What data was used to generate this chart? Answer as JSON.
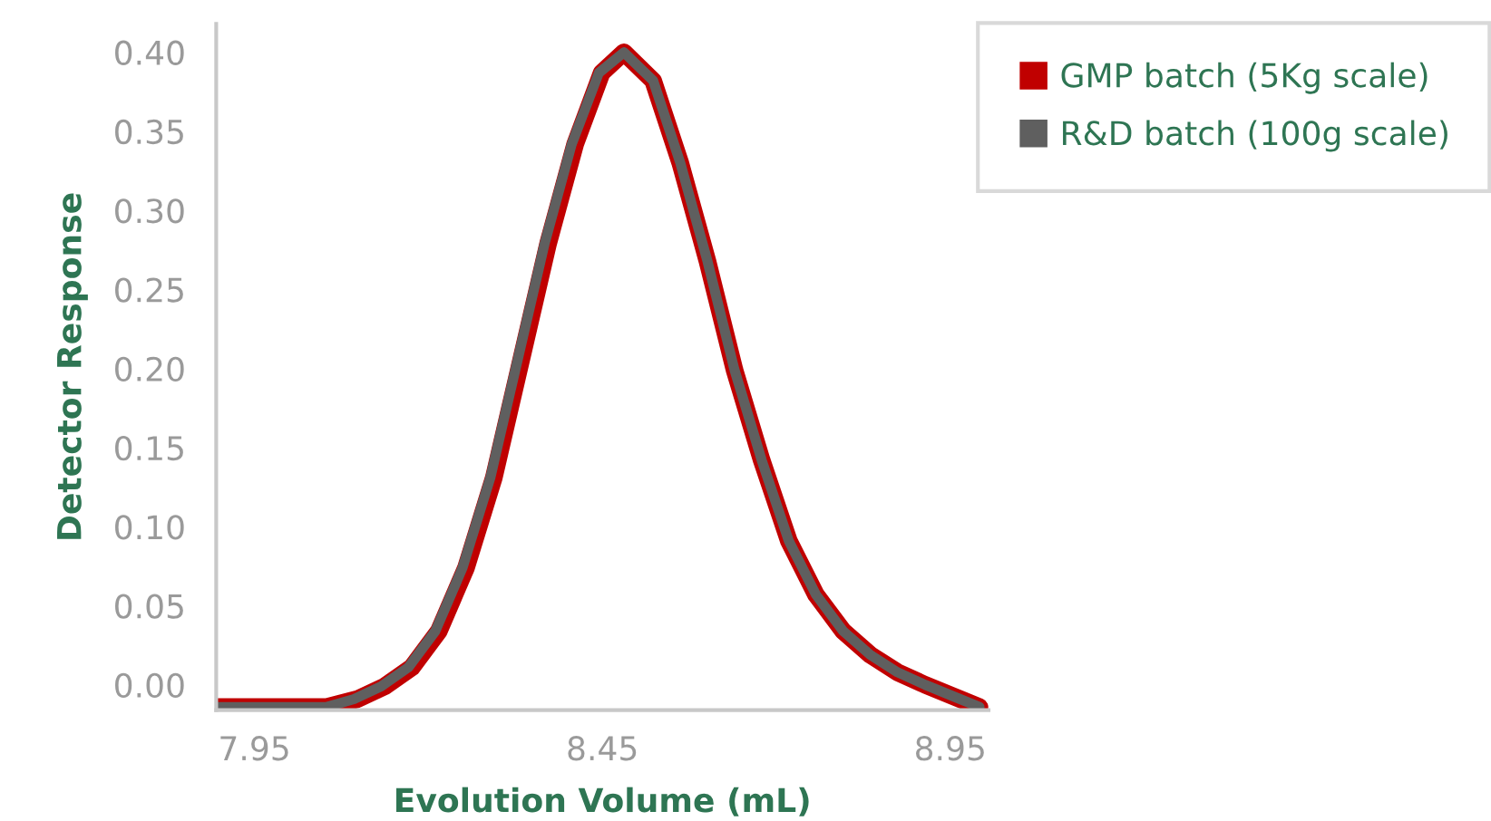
{
  "chart_data": {
    "type": "line",
    "xlabel": "Evolution Volume (mL)",
    "ylabel": "Detector Response",
    "xlim": [
      7.895,
      9.005
    ],
    "xticks": [
      7.95,
      8.45,
      8.95
    ],
    "ylim": [
      -0.016,
      0.418
    ],
    "yticks": [
      {
        "value": 0,
        "label": "0.00"
      },
      0.05,
      {
        "value": 0.1,
        "label": "0.10"
      },
      0.15,
      {
        "value": 0.2,
        "label": "0.20"
      },
      0.25,
      {
        "value": 0.3,
        "label": "0.30"
      },
      0.35,
      {
        "value": 0.4,
        "label": "0.40"
      }
    ],
    "grid": false,
    "legend": "top right",
    "marker": "none",
    "line_style": "solid",
    "series": [
      {
        "name": "GMP batch (5Kg scale)",
        "color": "#c00000",
        "x": [
          7.895,
          8.054,
          8.098,
          8.137,
          8.176,
          8.215,
          8.254,
          8.294,
          8.333,
          8.372,
          8.411,
          8.449,
          8.481,
          8.523,
          8.562,
          8.601,
          8.64,
          8.679,
          8.718,
          8.757,
          8.796,
          8.835,
          8.874,
          8.914,
          8.953,
          8.992
        ],
        "values": [
          -0.014,
          -0.014,
          -0.009,
          -0.001,
          0.011,
          0.034,
          0.074,
          0.131,
          0.205,
          0.279,
          0.342,
          0.387,
          0.4,
          0.382,
          0.33,
          0.268,
          0.199,
          0.142,
          0.091,
          0.057,
          0.034,
          0.019,
          0.008,
          0.0,
          -0.007,
          -0.014
        ]
      },
      {
        "name": "R&D batch (100g scale)",
        "color": "#5f5f5f",
        "x": [
          7.895,
          8.054,
          8.093,
          8.132,
          8.171,
          8.21,
          8.249,
          8.289,
          8.328,
          8.367,
          8.406,
          8.445,
          8.481,
          8.523,
          8.562,
          8.601,
          8.64,
          8.679,
          8.718,
          8.757,
          8.796,
          8.835,
          8.874,
          8.914,
          8.953,
          8.992
        ],
        "values": [
          -0.014,
          -0.014,
          -0.009,
          -0.001,
          0.011,
          0.034,
          0.074,
          0.131,
          0.205,
          0.279,
          0.342,
          0.387,
          0.4,
          0.382,
          0.33,
          0.268,
          0.199,
          0.142,
          0.091,
          0.057,
          0.034,
          0.019,
          0.008,
          0.0,
          -0.007,
          -0.014
        ]
      }
    ]
  }
}
